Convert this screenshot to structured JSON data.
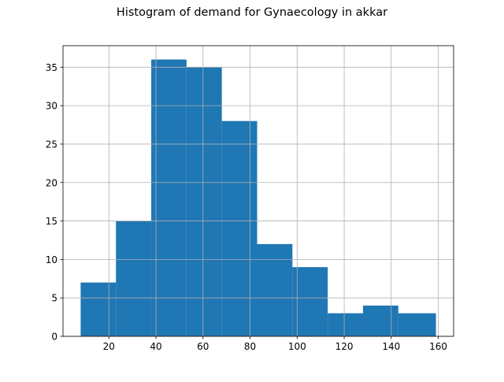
{
  "chart_data": {
    "type": "bar",
    "title": "Histogram of demand for Gynaecology in akkar",
    "xlabel": "",
    "ylabel": "",
    "bins": [
      {
        "x0": 8,
        "x1": 23,
        "count": 7
      },
      {
        "x0": 23,
        "x1": 38,
        "count": 15
      },
      {
        "x0": 38,
        "x1": 53,
        "count": 36
      },
      {
        "x0": 53,
        "x1": 68,
        "count": 35
      },
      {
        "x0": 68,
        "x1": 83,
        "count": 28
      },
      {
        "x0": 83,
        "x1": 98,
        "count": 12
      },
      {
        "x0": 98,
        "x1": 113,
        "count": 9
      },
      {
        "x0": 113,
        "x1": 128,
        "count": 3
      },
      {
        "x0": 128,
        "x1": 143,
        "count": 4
      },
      {
        "x0": 143,
        "x1": 159,
        "count": 3
      }
    ],
    "xlim": [
      0.5,
      166.5
    ],
    "ylim": [
      0,
      37.8
    ],
    "xticks": [
      20,
      40,
      60,
      80,
      100,
      120,
      140,
      160
    ],
    "yticks": [
      0,
      5,
      10,
      15,
      20,
      25,
      30,
      35
    ],
    "grid": true,
    "bar_color": "#1f77b4",
    "grid_color": "#b0b0b0"
  }
}
